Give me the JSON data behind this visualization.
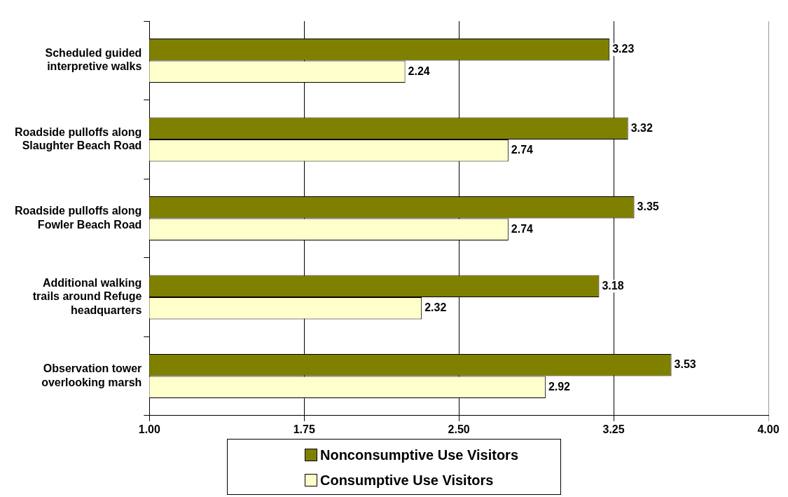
{
  "chart_data": {
    "type": "bar",
    "orientation": "horizontal",
    "categories": [
      "Scheduled guided interpretive walks",
      "Roadside pulloffs along Slaughter Beach Road",
      "Roadside pulloffs along Fowler Beach Road",
      "Additional walking trails around Refuge headquarters",
      "Observation tower overlooking marsh"
    ],
    "series": [
      {
        "name": "Nonconsumptive Use Visitors",
        "color": "#808000",
        "values": [
          3.23,
          3.32,
          3.35,
          3.18,
          3.53
        ]
      },
      {
        "name": "Consumptive Use Visitors",
        "color": "#ffffcc",
        "values": [
          2.24,
          2.74,
          2.74,
          2.32,
          2.92
        ]
      }
    ],
    "xlim": [
      1,
      4
    ],
    "xticks": [
      {
        "value": 1,
        "label": "1.00"
      },
      {
        "value": 1.75,
        "label": "1.75"
      },
      {
        "value": 2.5,
        "label": "2.50"
      },
      {
        "value": 3.25,
        "label": "3.25"
      },
      {
        "value": 4,
        "label": "4.00"
      }
    ],
    "grid": "x",
    "legend": "bottom",
    "data_labels": true
  }
}
